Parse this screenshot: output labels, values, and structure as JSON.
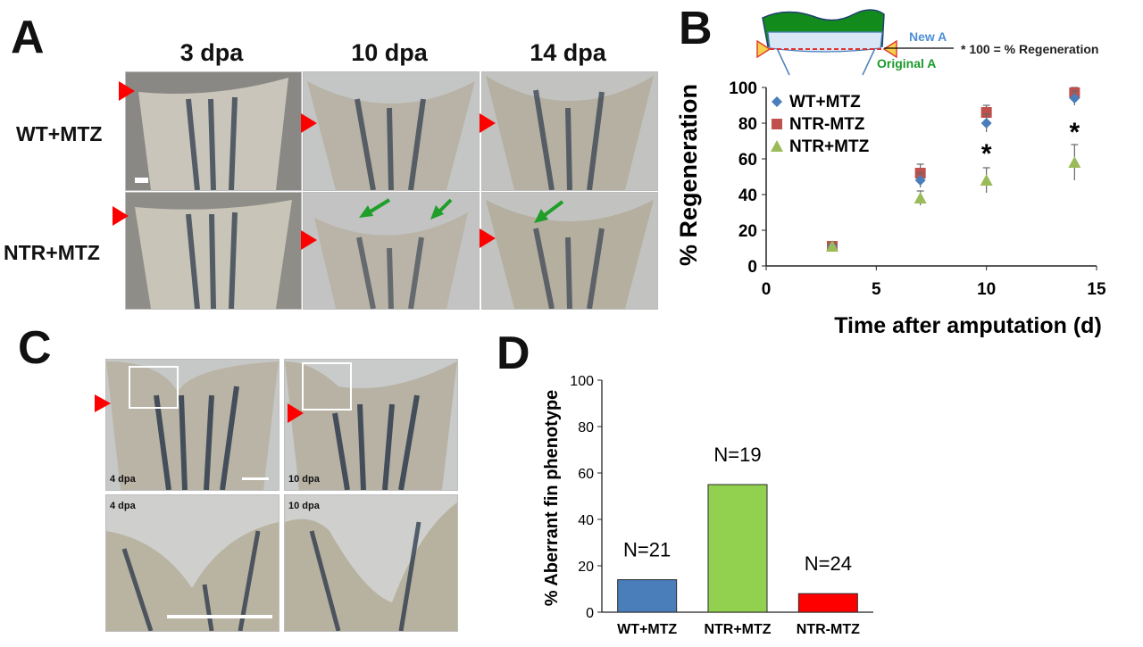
{
  "panels": {
    "a": "A",
    "b": "B",
    "c": "C",
    "d": "D"
  },
  "panel_a": {
    "columns": [
      "3 dpa",
      "10 dpa",
      "14 dpa"
    ],
    "rows": [
      "WT+MTZ",
      "NTR+MTZ"
    ]
  },
  "panel_c": {
    "top_labels": [
      "4 dpa",
      "10 dpa"
    ],
    "bottom_labels": [
      "4 dpa",
      "10 dpa"
    ]
  },
  "formula": {
    "numerator": "New A",
    "denominator": "Original A",
    "rest": "* 100 = % Regeneration"
  },
  "colors": {
    "wt_mtz": "#4a7ebb",
    "ntr_minus_mtz": "#c0504d",
    "ntr_plus_mtz": "#9bbb59",
    "bar_wt": "#4a7ebb",
    "bar_ntr_plus": "#92d050",
    "bar_ntr_minus": "#ff0000",
    "arrowhead": "#ff0000",
    "arrow_green": "#1f9e2a"
  },
  "chart_data": [
    {
      "type": "scatter",
      "xlabel": "Time after amputation (d)",
      "ylabel": "% Regeneration",
      "xlim": [
        0,
        15
      ],
      "ylim": [
        0,
        100
      ],
      "xticks": [
        0,
        5,
        10,
        15
      ],
      "yticks": [
        0,
        20,
        40,
        60,
        80,
        100
      ],
      "legend_position": "top-left",
      "series": [
        {
          "name": "WT+MTZ",
          "marker": "diamond",
          "x": [
            3,
            7,
            10,
            14
          ],
          "y": [
            11,
            48,
            80,
            94
          ],
          "err": [
            1,
            4,
            5,
            4
          ]
        },
        {
          "name": "NTR-MTZ",
          "marker": "square",
          "x": [
            3,
            7,
            10,
            14
          ],
          "y": [
            11,
            52,
            86,
            97
          ],
          "err": [
            1,
            5,
            4,
            3
          ]
        },
        {
          "name": "NTR+MTZ",
          "marker": "triangle",
          "x": [
            3,
            7,
            10,
            14
          ],
          "y": [
            11,
            38,
            48,
            58
          ],
          "err": [
            1,
            4,
            7,
            10
          ]
        }
      ],
      "significance": [
        {
          "x": 10,
          "y": 66,
          "label": "*"
        },
        {
          "x": 14,
          "y": 78,
          "label": "*"
        }
      ]
    },
    {
      "type": "bar",
      "ylabel": "% Aberrant fin phenotype",
      "ylim": [
        0,
        100
      ],
      "yticks": [
        0,
        20,
        40,
        60,
        80,
        100
      ],
      "categories": [
        "WT+MTZ",
        "NTR+MTZ",
        "NTR-MTZ"
      ],
      "values": [
        14,
        55,
        8
      ],
      "annotations": [
        "N=21",
        "N=19",
        "N=24"
      ]
    }
  ]
}
